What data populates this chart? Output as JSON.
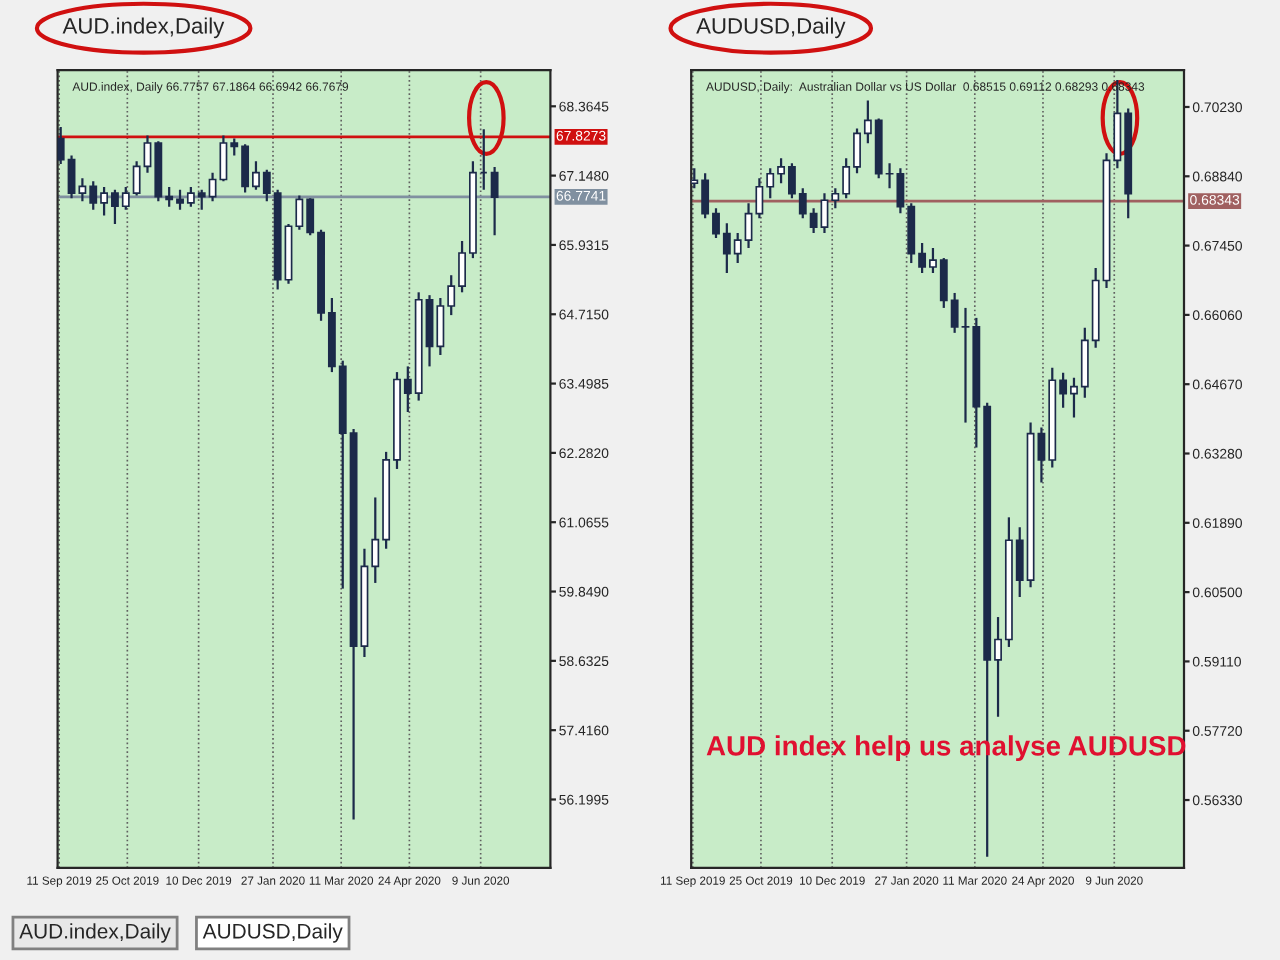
{
  "chart_data": [
    {
      "type": "candlestick",
      "title": "AUD.index,Daily",
      "subtitle": "AUD.index, Daily 66.7757 67.1864 66.6942 66.7679",
      "color": "#1c2a4a",
      "x": [
        "2019-09-12",
        "2019-09-19",
        "2019-09-26",
        "2019-10-03",
        "2019-10-10",
        "2019-10-17",
        "2019-10-24",
        "2019-10-31",
        "2019-11-07",
        "2019-11-14",
        "2019-11-21",
        "2019-11-28",
        "2019-12-05",
        "2019-12-12",
        "2019-12-19",
        "2019-12-26",
        "2020-01-02",
        "2020-01-09",
        "2020-01-16",
        "2020-01-23",
        "2020-01-30",
        "2020-02-06",
        "2020-02-13",
        "2020-02-20",
        "2020-02-27",
        "2020-03-05",
        "2020-03-12",
        "2020-03-19",
        "2020-03-26",
        "2020-04-02",
        "2020-04-09",
        "2020-04-16",
        "2020-04-23",
        "2020-04-30",
        "2020-05-07",
        "2020-05-14",
        "2020-05-21",
        "2020-05-28",
        "2020-06-04",
        "2020-06-11",
        "2020-06-18"
      ],
      "ohlc": [
        [
          67.8,
          68.0,
          67.35,
          67.43
        ],
        [
          67.43,
          67.5,
          66.75,
          66.84
        ],
        [
          66.84,
          67.1,
          66.7,
          66.96
        ],
        [
          66.96,
          67.05,
          66.55,
          66.67
        ],
        [
          66.67,
          66.95,
          66.45,
          66.84
        ],
        [
          66.84,
          66.9,
          66.3,
          66.61
        ],
        [
          66.61,
          66.95,
          66.55,
          66.84
        ],
        [
          66.84,
          67.4,
          66.8,
          67.31
        ],
        [
          67.31,
          67.85,
          67.2,
          67.72
        ],
        [
          67.72,
          67.75,
          66.7,
          66.78
        ],
        [
          66.78,
          66.95,
          66.6,
          66.73
        ],
        [
          66.73,
          66.9,
          66.55,
          66.67
        ],
        [
          66.67,
          66.95,
          66.6,
          66.84
        ],
        [
          66.84,
          66.9,
          66.55,
          66.78
        ],
        [
          66.78,
          67.2,
          66.7,
          67.08
        ],
        [
          67.08,
          67.85,
          67.05,
          67.72
        ],
        [
          67.72,
          67.8,
          67.5,
          67.66
        ],
        [
          67.66,
          67.7,
          66.85,
          66.96
        ],
        [
          66.96,
          67.4,
          66.9,
          67.2
        ],
        [
          67.2,
          67.25,
          66.7,
          66.84
        ],
        [
          66.84,
          66.9,
          65.15,
          65.32
        ],
        [
          65.32,
          66.3,
          65.25,
          66.26
        ],
        [
          66.26,
          66.8,
          66.2,
          66.73
        ],
        [
          66.73,
          66.75,
          66.1,
          66.15
        ],
        [
          66.15,
          66.2,
          64.6,
          64.74
        ],
        [
          64.74,
          65.0,
          63.7,
          63.8
        ],
        [
          63.8,
          63.9,
          59.9,
          62.63
        ],
        [
          62.63,
          62.7,
          55.85,
          58.89
        ],
        [
          58.89,
          60.6,
          58.7,
          60.29
        ],
        [
          60.29,
          61.5,
          60.0,
          60.76
        ],
        [
          60.76,
          62.3,
          60.6,
          62.16
        ],
        [
          62.16,
          63.7,
          62.0,
          63.57
        ],
        [
          63.57,
          63.8,
          63.0,
          63.33
        ],
        [
          63.33,
          65.1,
          63.2,
          64.97
        ],
        [
          64.97,
          65.05,
          63.8,
          64.15
        ],
        [
          64.15,
          65.0,
          64.0,
          64.86
        ],
        [
          64.86,
          65.4,
          64.7,
          65.21
        ],
        [
          65.21,
          66.0,
          65.1,
          65.79
        ],
        [
          65.79,
          67.4,
          65.7,
          67.2
        ],
        [
          67.2,
          67.96,
          66.9,
          67.2
        ],
        [
          67.2,
          67.3,
          66.1,
          66.77
        ]
      ],
      "xlim": [
        "2019-09-10",
        "2020-07-24"
      ],
      "xticks": [
        {
          "value": "2019-09-11",
          "label": "11 Sep 2019"
        },
        {
          "value": "2019-10-25",
          "label": "25 Oct 2019"
        },
        {
          "value": "2019-12-10",
          "label": "10 Dec 2019"
        },
        {
          "value": "2020-01-27",
          "label": "27 Jan 2020"
        },
        {
          "value": "2020-03-11",
          "label": "11 Mar 2020"
        },
        {
          "value": "2020-04-24",
          "label": "24 Apr 2020"
        },
        {
          "value": "2020-06-09",
          "label": "9 Jun 2020"
        }
      ],
      "ylim": [
        55.0,
        69.0
      ],
      "yticks": [
        {
          "value": 68.3645,
          "label": "68.3645"
        },
        {
          "value": 67.148,
          "label": "67.1480"
        },
        {
          "value": 65.9315,
          "label": "65.9315"
        },
        {
          "value": 64.715,
          "label": "64.7150"
        },
        {
          "value": 63.4985,
          "label": "63.4985"
        },
        {
          "value": 62.282,
          "label": "62.2820"
        },
        {
          "value": 61.0655,
          "label": "61.0655"
        },
        {
          "value": 59.849,
          "label": "59.8490"
        },
        {
          "value": 58.6325,
          "label": "58.6325"
        },
        {
          "value": 57.416,
          "label": "57.4160"
        },
        {
          "value": 56.1995,
          "label": "56.1995"
        }
      ],
      "ref_lines": [
        {
          "axis": "y",
          "value": 67.8273,
          "label": "67.8273",
          "color": "#d01010"
        },
        {
          "axis": "y",
          "value": 66.7741,
          "label": "66.7741",
          "color": "#8090a0"
        }
      ],
      "grid": "x",
      "annotations": [
        "AUD.index,Daily",
        "AUDUSD,Daily"
      ]
    },
    {
      "type": "candlestick",
      "title": "AUDUSD,Daily",
      "subtitle": "AUDUSD, Daily:  Australian Dollar vs US Dollar  0.68515 0.69112 0.68293 0.68343",
      "color": "#1c2a4a",
      "x": [
        "2019-09-12",
        "2019-09-19",
        "2019-09-26",
        "2019-10-03",
        "2019-10-10",
        "2019-10-17",
        "2019-10-24",
        "2019-10-31",
        "2019-11-07",
        "2019-11-14",
        "2019-11-21",
        "2019-11-28",
        "2019-12-05",
        "2019-12-12",
        "2019-12-19",
        "2019-12-26",
        "2020-01-02",
        "2020-01-09",
        "2020-01-16",
        "2020-01-23",
        "2020-01-30",
        "2020-02-06",
        "2020-02-13",
        "2020-02-20",
        "2020-02-27",
        "2020-03-05",
        "2020-03-12",
        "2020-03-19",
        "2020-03-26",
        "2020-04-02",
        "2020-04-09",
        "2020-04-16",
        "2020-04-23",
        "2020-04-30",
        "2020-05-07",
        "2020-05-14",
        "2020-05-21",
        "2020-05-28",
        "2020-06-04",
        "2020-06-11",
        "2020-06-18"
      ],
      "ohlc": [
        [
          0.687,
          0.69,
          0.686,
          0.6876
        ],
        [
          0.6876,
          0.689,
          0.68,
          0.6809
        ],
        [
          0.6809,
          0.682,
          0.676,
          0.6769
        ],
        [
          0.6769,
          0.679,
          0.669,
          0.6729
        ],
        [
          0.6729,
          0.677,
          0.671,
          0.6756
        ],
        [
          0.6756,
          0.683,
          0.674,
          0.6809
        ],
        [
          0.6809,
          0.688,
          0.68,
          0.6863
        ],
        [
          0.6863,
          0.69,
          0.684,
          0.6889
        ],
        [
          0.6889,
          0.692,
          0.687,
          0.6903
        ],
        [
          0.6903,
          0.691,
          0.684,
          0.6849
        ],
        [
          0.6849,
          0.686,
          0.68,
          0.6809
        ],
        [
          0.6809,
          0.682,
          0.677,
          0.6782
        ],
        [
          0.6782,
          0.685,
          0.677,
          0.6836
        ],
        [
          0.6836,
          0.686,
          0.682,
          0.6849
        ],
        [
          0.6849,
          0.692,
          0.684,
          0.6903
        ],
        [
          0.6903,
          0.698,
          0.689,
          0.697
        ],
        [
          0.697,
          0.7036,
          0.695,
          0.6996
        ],
        [
          0.6996,
          0.7,
          0.688,
          0.6889
        ],
        [
          0.6889,
          0.691,
          0.686,
          0.6889
        ],
        [
          0.6889,
          0.69,
          0.681,
          0.6823
        ],
        [
          0.6823,
          0.683,
          0.671,
          0.6729
        ],
        [
          0.6729,
          0.675,
          0.669,
          0.6702
        ],
        [
          0.6702,
          0.674,
          0.669,
          0.6716
        ],
        [
          0.6716,
          0.672,
          0.662,
          0.6635
        ],
        [
          0.6635,
          0.665,
          0.657,
          0.6582
        ],
        [
          0.6582,
          0.662,
          0.639,
          0.6582
        ],
        [
          0.6582,
          0.66,
          0.634,
          0.6422
        ],
        [
          0.6422,
          0.643,
          0.5519,
          0.5914
        ],
        [
          0.5914,
          0.6,
          0.58,
          0.5955
        ],
        [
          0.5955,
          0.62,
          0.594,
          0.6154
        ],
        [
          0.6154,
          0.618,
          0.604,
          0.6074
        ],
        [
          0.6074,
          0.639,
          0.606,
          0.6368
        ],
        [
          0.6368,
          0.638,
          0.627,
          0.6315
        ],
        [
          0.6315,
          0.65,
          0.63,
          0.6475
        ],
        [
          0.6475,
          0.649,
          0.642,
          0.6448
        ],
        [
          0.6448,
          0.648,
          0.64,
          0.6462
        ],
        [
          0.6462,
          0.658,
          0.644,
          0.6555
        ],
        [
          0.6555,
          0.67,
          0.654,
          0.6675
        ],
        [
          0.6675,
          0.693,
          0.666,
          0.6916
        ],
        [
          0.6916,
          0.7077,
          0.69,
          0.701
        ],
        [
          0.701,
          0.702,
          0.68,
          0.6849
        ]
      ],
      "xlim": [
        "2019-09-10",
        "2020-07-24"
      ],
      "xticks": [
        {
          "value": "2019-09-11",
          "label": "11 Sep 2019"
        },
        {
          "value": "2019-10-25",
          "label": "25 Oct 2019"
        },
        {
          "value": "2019-12-10",
          "label": "10 Dec 2019"
        },
        {
          "value": "2020-01-27",
          "label": "27 Jan 2020"
        },
        {
          "value": "2020-03-11",
          "label": "11 Mar 2020"
        },
        {
          "value": "2020-04-24",
          "label": "24 Apr 2020"
        },
        {
          "value": "2020-06-09",
          "label": "9 Jun 2020"
        }
      ],
      "ylim": [
        0.5497,
        0.7097
      ],
      "yticks": [
        {
          "value": 0.7023,
          "label": "0.70230"
        },
        {
          "value": 0.6884,
          "label": "0.68840"
        },
        {
          "value": 0.6745,
          "label": "0.67450"
        },
        {
          "value": 0.6606,
          "label": "0.66060"
        },
        {
          "value": 0.6467,
          "label": "0.64670"
        },
        {
          "value": 0.6328,
          "label": "0.63280"
        },
        {
          "value": 0.6189,
          "label": "0.61890"
        },
        {
          "value": 0.605,
          "label": "0.60500"
        },
        {
          "value": 0.5911,
          "label": "0.59110"
        },
        {
          "value": 0.5772,
          "label": "0.57720"
        },
        {
          "value": 0.5633,
          "label": "0.56330"
        }
      ],
      "ref_lines": [
        {
          "axis": "y",
          "value": 0.68343,
          "label": "0.68343",
          "color": "#a06060"
        }
      ],
      "grid": "x",
      "annotations": [
        "AUD index help us analyse AUDUSD"
      ]
    }
  ]
}
